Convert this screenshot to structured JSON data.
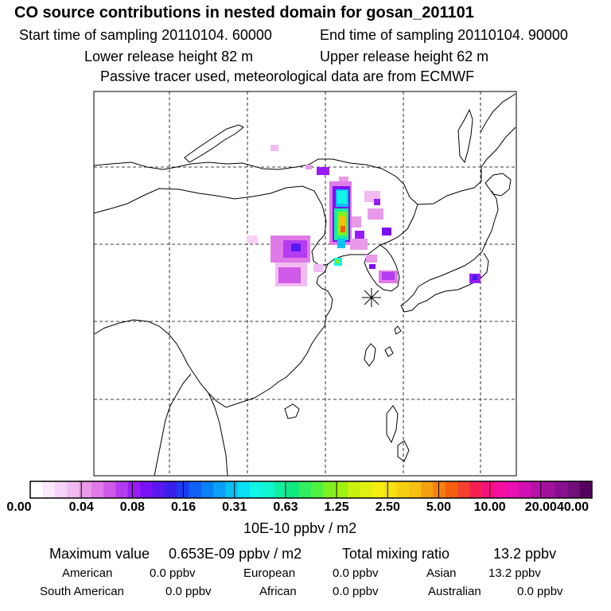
{
  "title": "CO  source contributions in nested domain for gosan_201101",
  "sampling": {
    "start": "Start time of sampling 20110104. 60000",
    "end": "End time of sampling 20110104. 90000"
  },
  "release": {
    "lower": "Lower release height   82 m",
    "upper": "Upper release height   62 m"
  },
  "tracer_note": "Passive tracer used, meteorological data are from ECMWF",
  "colorbar": {
    "ticks": [
      "0.00",
      "0.04",
      "0.08",
      "0.16",
      "0.31",
      "0.63",
      "1.25",
      "2.50",
      "5.00",
      "10.00",
      "20.00",
      "40.00"
    ],
    "unit": "10E-10 ppbv / m2",
    "colors": [
      "#ffffff",
      "#fbe8fb",
      "#f7d2f7",
      "#f2bcf2",
      "#e89ae8",
      "#e07ae8",
      "#d05ae8",
      "#b43cf0",
      "#9a1cf5",
      "#7a10f5",
      "#5a18f0",
      "#3a20e8",
      "#1a3cf0",
      "#1060f5",
      "#0a80f5",
      "#0aa0f5",
      "#0ac0f5",
      "#0ae0f5",
      "#10f5e8",
      "#10f5d0",
      "#10f0a0",
      "#10e880",
      "#30f060",
      "#50f040",
      "#80f020",
      "#a0f010",
      "#c8f010",
      "#e0f010",
      "#f5f010",
      "#f5e010",
      "#f5d010",
      "#f5c010",
      "#f5a010",
      "#f58010",
      "#f56010",
      "#f54030",
      "#f52050",
      "#f51080",
      "#f510a0",
      "#e810b0",
      "#d010b0",
      "#b810a8",
      "#a0109a",
      "#881090",
      "#70107a",
      "#580060"
    ]
  },
  "stats": {
    "max_label": "Maximum value",
    "max_value": "0.653E-09 ppbv / m2",
    "total_label": "Total mixing ratio",
    "total_value": "13.2 ppbv",
    "regions": [
      {
        "name": "American",
        "value": "0.0 ppbv"
      },
      {
        "name": "European",
        "value": "0.0 ppbv"
      },
      {
        "name": "Asian",
        "value": "13.2 ppbv"
      },
      {
        "name": "South American",
        "value": "0.0 ppbv"
      },
      {
        "name": "African",
        "value": "0.0 ppbv"
      },
      {
        "name": "Australian",
        "value": "0.0 ppbv"
      }
    ]
  },
  "chart_data": {
    "type": "heatmap",
    "title": "CO  source contributions in nested domain for gosan_201101",
    "colorbar_ticks": [
      0.0,
      0.04,
      0.08,
      0.16,
      0.31,
      0.63,
      1.25,
      2.5,
      5.0,
      10.0,
      20.0,
      40.0
    ],
    "unit": "10E-10 ppbv / m2",
    "max_value": 6.53,
    "receptor": "gosan"
  }
}
